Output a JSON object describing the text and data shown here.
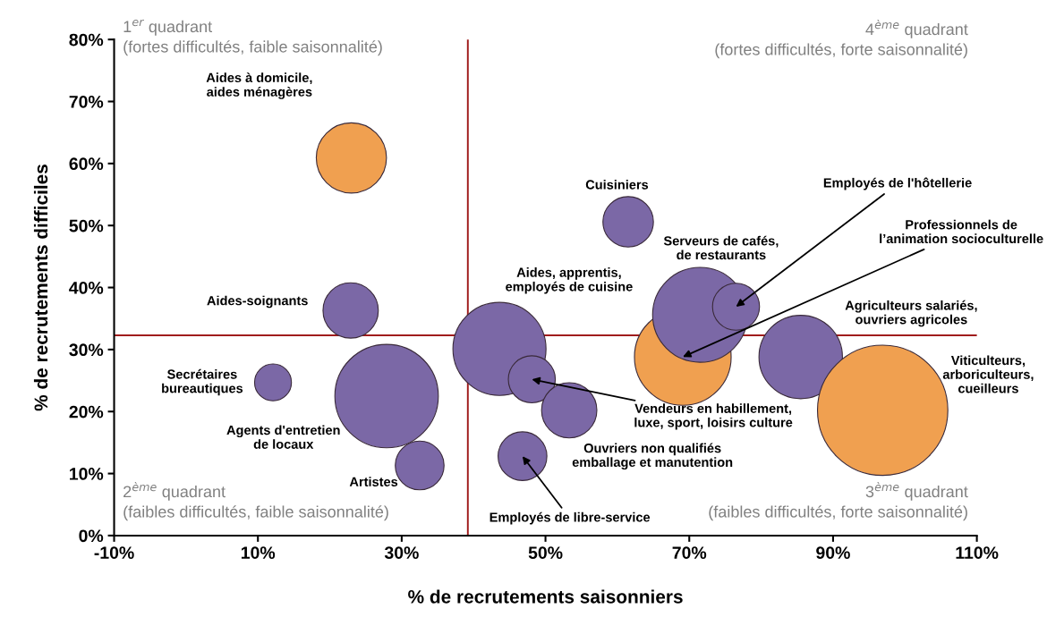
{
  "chart_data": {
    "type": "bubble",
    "xlabel": "% de recrutements saisonniers",
    "ylabel": "% de recrutements difficiles",
    "x": [
      23.0,
      22.9,
      12.1,
      27.9,
      32.5,
      43.6,
      48.1,
      53.3,
      46.8,
      61.5,
      69.1,
      71.5,
      76.5,
      85.5,
      96.9
    ],
    "values": [
      60.9,
      36.3,
      24.7,
      22.5,
      11.3,
      30.1,
      25.2,
      20.2,
      12.8,
      50.6,
      28.8,
      35.6,
      36.9,
      28.8,
      20.2
    ],
    "sizes": [
      0.29,
      0.18,
      0.08,
      0.63,
      0.14,
      0.51,
      0.13,
      0.18,
      0.14,
      0.15,
      0.55,
      0.53,
      0.13,
      0.41,
      1
    ],
    "colors": [
      "#f0a050",
      "#7b68a6",
      "#7b68a6",
      "#7b68a6",
      "#7b68a6",
      "#7b68a6",
      "#7b68a6",
      "#7b68a6",
      "#7b68a6",
      "#7b68a6",
      "#f0a050",
      "#7b68a6",
      "#7b68a6",
      "#7b68a6",
      "#f0a050"
    ],
    "xlim": [
      -10,
      110
    ],
    "xticks": [
      {
        "value": -10,
        "label": "-10%"
      },
      {
        "value": 10,
        "label": "10%"
      },
      {
        "value": 30,
        "label": "30%"
      },
      {
        "value": 50,
        "label": "50%"
      },
      {
        "value": 70,
        "label": "70%"
      },
      {
        "value": 90,
        "label": "90%"
      },
      {
        "value": 110,
        "label": "110%"
      }
    ],
    "ylim": [
      0,
      80
    ],
    "yticks": [
      {
        "value": 0,
        "label": "0%"
      },
      {
        "value": 10,
        "label": "10%"
      },
      {
        "value": 20,
        "label": "20%"
      },
      {
        "value": 30,
        "label": "30%"
      },
      {
        "value": 40,
        "label": "40%"
      },
      {
        "value": 50,
        "label": "50%"
      },
      {
        "value": 60,
        "label": "60%"
      },
      {
        "value": 70,
        "label": "70%"
      },
      {
        "value": 80,
        "label": "80%"
      }
    ],
    "ref_lines": [
      {
        "axis": "x",
        "value": 39.2,
        "color": "#a01c1c"
      },
      {
        "axis": "y",
        "value": 32.3,
        "color": "#a01c1c"
      }
    ],
    "grid": false,
    "legend": false,
    "annotations": [
      "Aides à domicile,\naides ménagères",
      "Aides-soignants",
      "Secrétaires\nbureautiques",
      "Agents d'entretien\nde locaux",
      "Artistes",
      "Aides, apprentis,\nemployés de cuisine",
      {
        "text": "Vendeurs en habillement,\nluxe, sport, loisirs culture",
        "x": 48.1,
        "y": 25.2
      },
      "Ouvriers non qualifiés\nemballage et manutention",
      {
        "text": "Employés de libre-service",
        "x": 46.8,
        "y": 12.8
      },
      "Cuisiniers",
      {
        "text": "Professionnels de\nl’animation socioculturelle",
        "x": 69.1,
        "y": 28.8
      },
      "Serveurs de cafés,\nde restaurants",
      {
        "text": "Employés de l'hôtellerie",
        "x": 76.5,
        "y": 36.9
      },
      "Agriculteurs salariés,\nouvriers agricoles",
      "Viticulteurs,\narboriculteurs,\ncueilleurs",
      "1$^{er}$ quadrant\n(fortes difficultés, faible saisonnalité)",
      "4$^{ème}$ quadrant\n(fortes difficultés, forte saisonnalité)",
      "2$^{ème}$ quadrant\n(faibles difficultés, faible saisonnalité)",
      "3$^{ème}$ quadrant\n(faibles difficultés, forte saisonnalité)"
    ]
  }
}
